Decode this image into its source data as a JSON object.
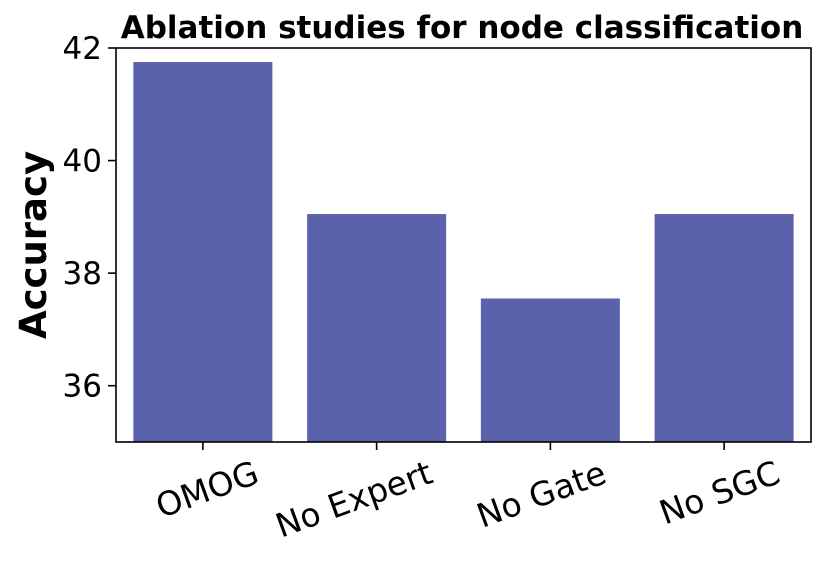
{
  "chart_data": {
    "type": "bar",
    "title": "Ablation studies for node classification",
    "xlabel": "",
    "ylabel": "Accuracy",
    "categories": [
      "OMOG",
      "No Expert",
      "No Gate",
      "No SGC"
    ],
    "values": [
      41.75,
      39.05,
      37.55,
      39.05
    ],
    "ylim": [
      35,
      42
    ],
    "yticks": [
      36,
      38,
      40,
      42
    ],
    "bar_color": "#5a62ab",
    "grid": false,
    "xtick_rotation": 20
  }
}
